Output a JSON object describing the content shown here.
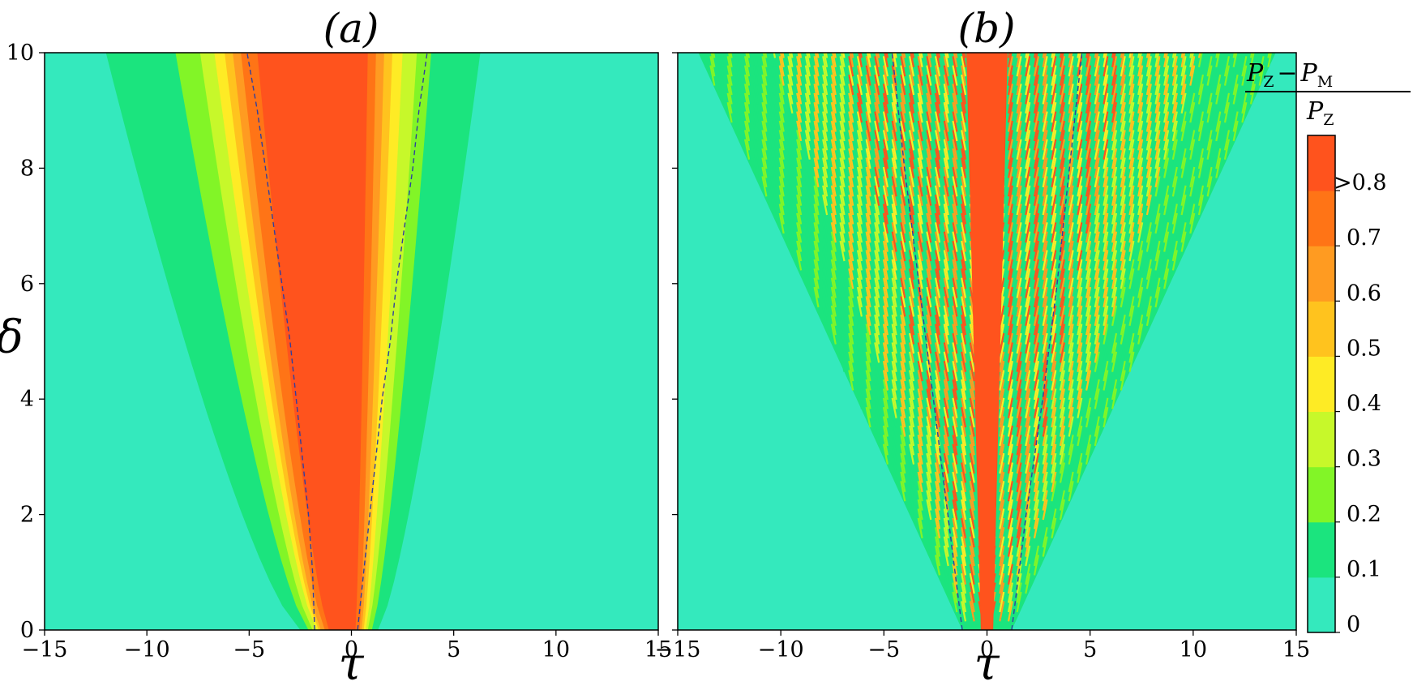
{
  "chart_data": [
    {
      "type": "heatmap",
      "panel": "a",
      "title": "(a)",
      "xlabel": "τ",
      "ylabel": "δ",
      "xlim": [
        -15,
        15
      ],
      "ylim": [
        0,
        10
      ],
      "xticks": [
        "−15",
        "−10",
        "−5",
        "0",
        "5",
        "10",
        "15"
      ],
      "xtick_values": [
        -15,
        -10,
        -5,
        0,
        5,
        10,
        15
      ],
      "yticks": [
        "0",
        "2",
        "4",
        "6",
        "8",
        "10"
      ],
      "ytick_values": [
        0,
        2,
        4,
        6,
        8,
        10
      ],
      "regions_by_level": [
        {
          "level": ">0.8",
          "left_edge_at_delta_0": -1.1,
          "left_edge_at_delta_10": -4.6,
          "right_edge_at_delta_0": 0.2,
          "right_edge_at_delta_10": 0.8
        },
        {
          "level": "0.7",
          "left_edge_at_delta_0": -1.3,
          "left_edge_at_delta_10": -5.4,
          "right_edge_at_delta_0": 0.4,
          "right_edge_at_delta_10": 1.2
        },
        {
          "level": "0.6",
          "left_edge_at_delta_0": -1.5,
          "left_edge_at_delta_10": -5.8,
          "right_edge_at_delta_0": 0.5,
          "right_edge_at_delta_10": 1.6
        },
        {
          "level": "0.5",
          "left_edge_at_delta_0": -1.6,
          "left_edge_at_delta_10": -6.2,
          "right_edge_at_delta_0": 0.6,
          "right_edge_at_delta_10": 2.0
        },
        {
          "level": "0.4",
          "left_edge_at_delta_0": -1.7,
          "left_edge_at_delta_10": -6.7,
          "right_edge_at_delta_0": 0.7,
          "right_edge_at_delta_10": 2.5
        },
        {
          "level": "0.3",
          "left_edge_at_delta_0": -1.9,
          "left_edge_at_delta_10": -7.4,
          "right_edge_at_delta_0": 0.8,
          "right_edge_at_delta_10": 3.2
        },
        {
          "level": "0.2",
          "left_edge_at_delta_0": -2.1,
          "left_edge_at_delta_10": -8.6,
          "right_edge_at_delta_0": 1.0,
          "right_edge_at_delta_10": 3.9
        },
        {
          "level": "0.1",
          "left_edge_at_delta_0": -2.5,
          "left_edge_at_delta_10": -12.0,
          "right_edge_at_delta_0": 1.3,
          "right_edge_at_delta_10": 6.3
        }
      ],
      "dashed_curves": [
        {
          "delta": [
            0,
            1,
            2,
            3,
            4,
            5,
            6,
            7,
            8,
            9,
            10
          ],
          "tau": [
            -1.8,
            -1.9,
            -2.1,
            -2.4,
            -2.7,
            -3.0,
            -3.4,
            -3.8,
            -4.2,
            -4.6,
            -5.1
          ]
        },
        {
          "delta": [
            0,
            1,
            2,
            3,
            4,
            5,
            6,
            7,
            8,
            9,
            10
          ],
          "tau": [
            0.3,
            0.6,
            0.9,
            1.2,
            1.5,
            1.9,
            2.2,
            2.6,
            3.0,
            3.3,
            3.7
          ]
        }
      ]
    },
    {
      "type": "heatmap",
      "panel": "b",
      "title": "(b)",
      "xlabel": "τ",
      "ylabel": "",
      "xlim": [
        -15,
        15
      ],
      "ylim": [
        0,
        10
      ],
      "xticks": [
        "−15",
        "−10",
        "−5",
        "0",
        "5",
        "10",
        "15"
      ],
      "xtick_values": [
        -15,
        -10,
        -5,
        0,
        5,
        10,
        15
      ],
      "central_core": {
        "level": ">0.8",
        "half_width_at_delta_0": 0.3,
        "half_width_at_delta_10": 1.0
      },
      "fringe_envelope": [
        {
          "level": "0.1",
          "half_width_at_delta_0": 1.2,
          "half_width_at_delta_10": 14.0
        },
        {
          "level": "0.3",
          "half_width_at_delta_0": 0.9,
          "half_width_at_delta_10": 10.5
        },
        {
          "level": "0.7",
          "half_width_at_delta_0": 0.6,
          "half_width_at_delta_10": 7.0
        }
      ],
      "dashed_curves": [
        {
          "delta": [
            0,
            2,
            4,
            6,
            8,
            10
          ],
          "tau": [
            -1.2,
            -1.9,
            -2.6,
            -3.3,
            -4.0,
            -4.6
          ]
        },
        {
          "delta": [
            0,
            2,
            4,
            6,
            8,
            10
          ],
          "tau": [
            1.2,
            1.9,
            2.7,
            3.4,
            4.0,
            4.6
          ]
        }
      ]
    }
  ],
  "colorbar": {
    "label_numerator": "P_Z − P_M",
    "label_numerator_main_1": "P",
    "label_numerator_sub_1": "Z",
    "label_numerator_minus": "−",
    "label_numerator_main_2": "P",
    "label_numerator_sub_2": "M",
    "label_denominator_main": "P",
    "label_denominator_sub": "Z",
    "levels": [
      {
        "label": "0",
        "color": "#34E9BD"
      },
      {
        "label": "0.1",
        "color": "#1BE47E"
      },
      {
        "label": "0.2",
        "color": "#82F527"
      },
      {
        "label": "0.3",
        "color": "#C7F82A"
      },
      {
        "label": "0.4",
        "color": "#FEEB25"
      },
      {
        "label": "0.5",
        "color": "#FFC31E"
      },
      {
        "label": "0.6",
        "color": "#FF9B21"
      },
      {
        "label": "0.7",
        "color": "#FF7416"
      },
      {
        "label": ">0.8",
        "color": "#FF531D"
      }
    ]
  },
  "colors": {
    "background_level": "#34E9BD",
    "dashed_line": "#2F3FA0"
  }
}
